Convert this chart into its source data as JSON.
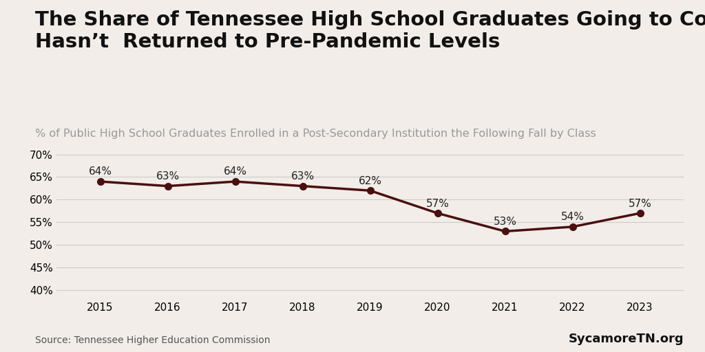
{
  "title_line1": "The Share of Tennessee High School Graduates Going to College",
  "title_line2": "Hasn’t  Returned to Pre-Pandemic Levels",
  "subtitle": "% of Public High School Graduates Enrolled in a Post-Secondary Institution the Following Fall by Class",
  "years": [
    2015,
    2016,
    2017,
    2018,
    2019,
    2020,
    2021,
    2022,
    2023
  ],
  "values": [
    64,
    63,
    64,
    63,
    62,
    57,
    53,
    54,
    57
  ],
  "line_color": "#4a1010",
  "marker_color": "#4a1010",
  "background_color": "#f2ede8",
  "yticks": [
    40,
    45,
    50,
    55,
    60,
    65,
    70
  ],
  "ylim": [
    38,
    73
  ],
  "source_text": "Source: Tennessee Higher Education Commission",
  "watermark": "SycamoreTN.org",
  "title_fontsize": 21,
  "subtitle_fontsize": 11.5,
  "label_fontsize": 11,
  "tick_fontsize": 11,
  "source_fontsize": 10,
  "watermark_fontsize": 13
}
